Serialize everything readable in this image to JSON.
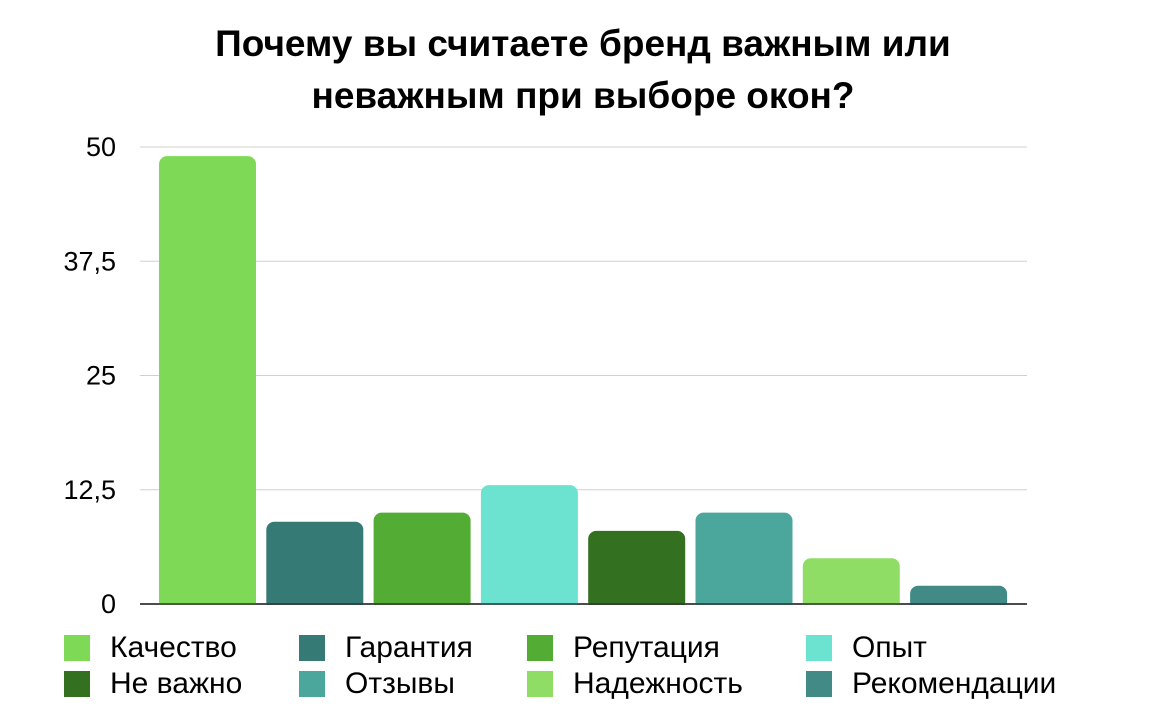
{
  "chart_data": {
    "type": "bar",
    "title_lines": [
      "Почему вы считаете бренд важным или",
      "неважным при выборе окон?"
    ],
    "categories": [
      "Качество",
      "Гарантия",
      "Репутация",
      "Опыт",
      "Не важно",
      "Отзывы",
      "Надежность",
      "Рекомендации"
    ],
    "values": [
      49,
      9,
      10,
      13,
      8,
      10,
      5,
      2
    ],
    "colors": [
      "#7ed957",
      "#357a75",
      "#53ad35",
      "#6ce2d0",
      "#33701f",
      "#4ba69c",
      "#8fdd65",
      "#418a85"
    ],
    "yticks": [
      "0",
      "12,5",
      "25",
      "37,5",
      "50"
    ],
    "ylim": [
      0,
      50
    ],
    "grid": true,
    "legend_position": "bottom",
    "xlabel": "",
    "ylabel": ""
  }
}
